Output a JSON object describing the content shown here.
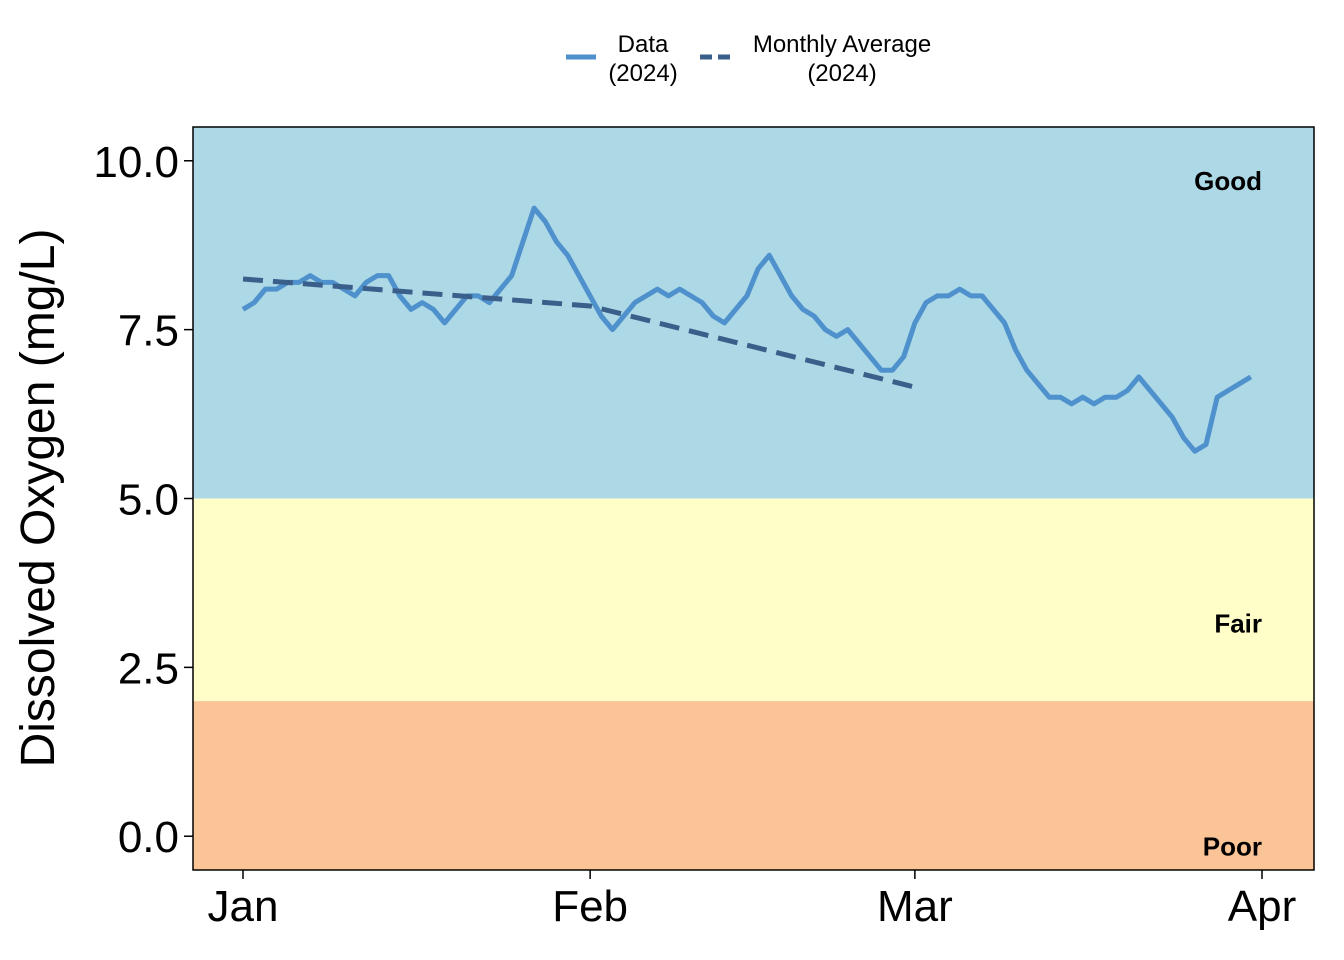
{
  "chart_data": {
    "type": "line",
    "title": "",
    "xlabel": "",
    "ylabel": "Dissolved Oxygen (mg/L)",
    "year": 2024,
    "xlim": [
      "2024-01-01",
      "2024-04-01"
    ],
    "ylim": [
      -0.5,
      10.5
    ],
    "x_ticks": [
      {
        "date": "2024-01-01",
        "label": "Jan"
      },
      {
        "date": "2024-02-01",
        "label": "Feb"
      },
      {
        "date": "2024-03-01",
        "label": "Mar"
      },
      {
        "date": "2024-04-01",
        "label": "Apr"
      }
    ],
    "y_ticks": [
      {
        "value": 0.0,
        "label": "0.0"
      },
      {
        "value": 2.5,
        "label": "2.5"
      },
      {
        "value": 5.0,
        "label": "5.0"
      },
      {
        "value": 7.5,
        "label": "7.5"
      },
      {
        "value": 10.0,
        "label": "10.0"
      }
    ],
    "bands": [
      {
        "label": "Good",
        "from": 5.0,
        "to": 10.5,
        "color": "#ADD8E6"
      },
      {
        "label": "Fair",
        "from": 2.0,
        "to": 5.0,
        "color": "#FFFDC8"
      },
      {
        "label": "Poor",
        "from": -0.5,
        "to": 2.0,
        "color": "#FAC497"
      }
    ],
    "legend": {
      "position": "top",
      "entries": [
        {
          "line1": "Data",
          "line2": "(2024)",
          "color": "#4E91CC",
          "dash": "solid"
        },
        {
          "line1": "Monthly Average",
          "line2": "(2024)",
          "color": "#3A5F8A",
          "dash": "dashed"
        }
      ]
    },
    "grid": false,
    "series": [
      {
        "name": "Data (2024)",
        "color": "#4E91CC",
        "style": "solid",
        "points": [
          [
            "2024-01-01",
            7.8
          ],
          [
            "2024-01-02",
            7.9
          ],
          [
            "2024-01-03",
            8.1
          ],
          [
            "2024-01-04",
            8.1
          ],
          [
            "2024-01-05",
            8.2
          ],
          [
            "2024-01-06",
            8.2
          ],
          [
            "2024-01-07",
            8.3
          ],
          [
            "2024-01-08",
            8.2
          ],
          [
            "2024-01-09",
            8.2
          ],
          [
            "2024-01-10",
            8.1
          ],
          [
            "2024-01-11",
            8.0
          ],
          [
            "2024-01-12",
            8.2
          ],
          [
            "2024-01-13",
            8.3
          ],
          [
            "2024-01-14",
            8.3
          ],
          [
            "2024-01-15",
            8.0
          ],
          [
            "2024-01-16",
            7.8
          ],
          [
            "2024-01-17",
            7.9
          ],
          [
            "2024-01-18",
            7.8
          ],
          [
            "2024-01-19",
            7.6
          ],
          [
            "2024-01-20",
            7.8
          ],
          [
            "2024-01-21",
            8.0
          ],
          [
            "2024-01-22",
            8.0
          ],
          [
            "2024-01-23",
            7.9
          ],
          [
            "2024-01-24",
            8.1
          ],
          [
            "2024-01-25",
            8.3
          ],
          [
            "2024-01-26",
            8.8
          ],
          [
            "2024-01-27",
            9.3
          ],
          [
            "2024-01-28",
            9.1
          ],
          [
            "2024-01-29",
            8.8
          ],
          [
            "2024-01-30",
            8.6
          ],
          [
            "2024-01-31",
            8.3
          ],
          [
            "2024-02-01",
            8.0
          ],
          [
            "2024-02-02",
            7.7
          ],
          [
            "2024-02-03",
            7.5
          ],
          [
            "2024-02-04",
            7.7
          ],
          [
            "2024-02-05",
            7.9
          ],
          [
            "2024-02-06",
            8.0
          ],
          [
            "2024-02-07",
            8.1
          ],
          [
            "2024-02-08",
            8.0
          ],
          [
            "2024-02-09",
            8.1
          ],
          [
            "2024-02-10",
            8.0
          ],
          [
            "2024-02-11",
            7.9
          ],
          [
            "2024-02-12",
            7.7
          ],
          [
            "2024-02-13",
            7.6
          ],
          [
            "2024-02-14",
            7.8
          ],
          [
            "2024-02-15",
            8.0
          ],
          [
            "2024-02-16",
            8.4
          ],
          [
            "2024-02-17",
            8.6
          ],
          [
            "2024-02-18",
            8.3
          ],
          [
            "2024-02-19",
            8.0
          ],
          [
            "2024-02-20",
            7.8
          ],
          [
            "2024-02-21",
            7.7
          ],
          [
            "2024-02-22",
            7.5
          ],
          [
            "2024-02-23",
            7.4
          ],
          [
            "2024-02-24",
            7.5
          ],
          [
            "2024-02-25",
            7.3
          ],
          [
            "2024-02-26",
            7.1
          ],
          [
            "2024-02-27",
            6.9
          ],
          [
            "2024-02-28",
            6.9
          ],
          [
            "2024-02-29",
            7.1
          ],
          [
            "2024-03-01",
            7.6
          ],
          [
            "2024-03-02",
            7.9
          ],
          [
            "2024-03-03",
            8.0
          ],
          [
            "2024-03-04",
            8.0
          ],
          [
            "2024-03-05",
            8.1
          ],
          [
            "2024-03-06",
            8.0
          ],
          [
            "2024-03-07",
            8.0
          ],
          [
            "2024-03-08",
            7.8
          ],
          [
            "2024-03-09",
            7.6
          ],
          [
            "2024-03-10",
            7.2
          ],
          [
            "2024-03-11",
            6.9
          ],
          [
            "2024-03-12",
            6.7
          ],
          [
            "2024-03-13",
            6.5
          ],
          [
            "2024-03-14",
            6.5
          ],
          [
            "2024-03-15",
            6.4
          ],
          [
            "2024-03-16",
            6.5
          ],
          [
            "2024-03-17",
            6.4
          ],
          [
            "2024-03-18",
            6.5
          ],
          [
            "2024-03-19",
            6.5
          ],
          [
            "2024-03-20",
            6.6
          ],
          [
            "2024-03-21",
            6.8
          ],
          [
            "2024-03-22",
            6.6
          ],
          [
            "2024-03-23",
            6.4
          ],
          [
            "2024-03-24",
            6.2
          ],
          [
            "2024-03-25",
            5.9
          ],
          [
            "2024-03-26",
            5.7
          ],
          [
            "2024-03-27",
            5.8
          ],
          [
            "2024-03-28",
            6.5
          ],
          [
            "2024-03-29",
            6.6
          ],
          [
            "2024-03-30",
            6.7
          ],
          [
            "2024-03-31",
            6.8
          ]
        ]
      },
      {
        "name": "Monthly Average (2024)",
        "color": "#3A5F8A",
        "style": "dashed",
        "points": [
          [
            "2024-01-01",
            8.25
          ],
          [
            "2024-02-01",
            7.85
          ],
          [
            "2024-03-01",
            6.65
          ]
        ]
      }
    ]
  }
}
